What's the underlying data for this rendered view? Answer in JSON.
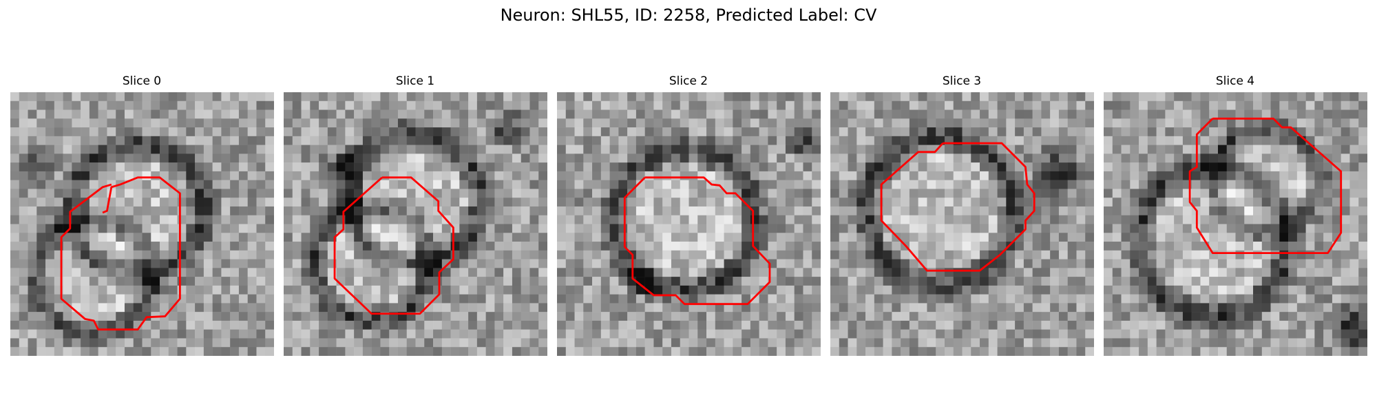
{
  "figure": {
    "title": "Neuron: SHL55, ID: 2258, Predicted Label: CV",
    "outline_color": "#ff0000",
    "colormap": "gray"
  },
  "slices": [
    {
      "title": "Slice 0"
    },
    {
      "title": "Slice 1"
    },
    {
      "title": "Slice 2"
    },
    {
      "title": "Slice 3"
    },
    {
      "title": "Slice 4"
    }
  ]
}
